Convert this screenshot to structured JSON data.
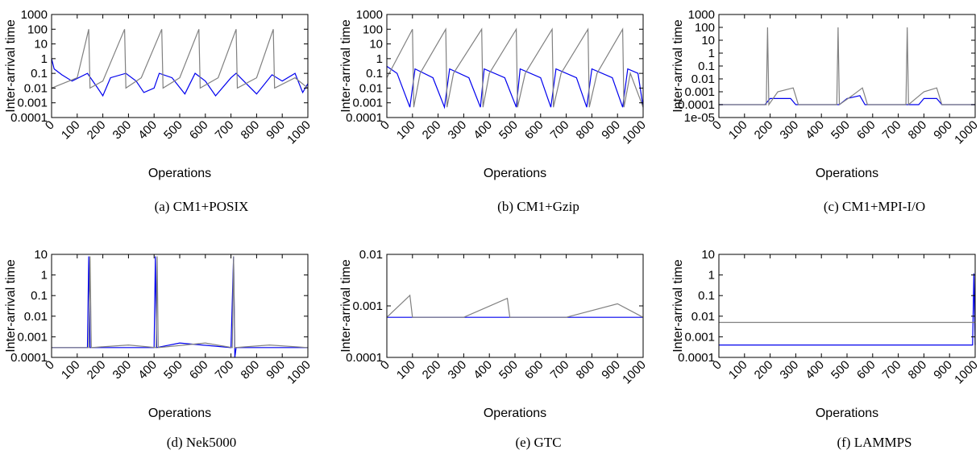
{
  "chart_data": [
    {
      "type": "line",
      "caption": "(a) CM1+POSIX",
      "xlabel": "Operations",
      "ylabel": "Inter-arrival time",
      "xlim": [
        0,
        1000
      ],
      "xticks": [
        0,
        100,
        200,
        300,
        400,
        500,
        600,
        700,
        800,
        900,
        1000
      ],
      "yscale": "log",
      "ylim": [
        0.0001,
        1000
      ],
      "yticks": [
        0.0001,
        0.001,
        0.01,
        0.1,
        1,
        10,
        100,
        1000
      ],
      "ytick_labels": [
        "0.0001",
        "0.001",
        "0.01",
        "0.1",
        "1",
        "10",
        "100",
        "1000"
      ],
      "series": [
        {
          "color": "#0000ee",
          "points": [
            [
              0,
              1
            ],
            [
              10,
              0.2
            ],
            [
              40,
              0.08
            ],
            [
              80,
              0.03
            ],
            [
              140,
              0.1
            ],
            [
              180,
              0.01
            ],
            [
              200,
              0.003
            ],
            [
              230,
              0.05
            ],
            [
              290,
              0.1
            ],
            [
              330,
              0.03
            ],
            [
              360,
              0.005
            ],
            [
              400,
              0.01
            ],
            [
              420,
              0.1
            ],
            [
              470,
              0.05
            ],
            [
              520,
              0.004
            ],
            [
              560,
              0.1
            ],
            [
              600,
              0.03
            ],
            [
              640,
              0.003
            ],
            [
              700,
              0.05
            ],
            [
              720,
              0.1
            ],
            [
              760,
              0.02
            ],
            [
              800,
              0.004
            ],
            [
              860,
              0.08
            ],
            [
              900,
              0.03
            ],
            [
              950,
              0.1
            ],
            [
              980,
              0.005
            ],
            [
              1000,
              0.02
            ]
          ]
        },
        {
          "color": "#808080",
          "points": [
            [
              0,
              0.01
            ],
            [
              100,
              0.05
            ],
            [
              145,
              100
            ],
            [
              150,
              0.01
            ],
            [
              200,
              0.03
            ],
            [
              285,
              100
            ],
            [
              290,
              0.01
            ],
            [
              350,
              0.05
            ],
            [
              430,
              100
            ],
            [
              435,
              0.01
            ],
            [
              500,
              0.05
            ],
            [
              575,
              100
            ],
            [
              580,
              0.01
            ],
            [
              650,
              0.05
            ],
            [
              720,
              100
            ],
            [
              725,
              0.01
            ],
            [
              800,
              0.05
            ],
            [
              865,
              100
            ],
            [
              870,
              0.01
            ],
            [
              950,
              0.05
            ],
            [
              1000,
              0.01
            ]
          ]
        }
      ]
    },
    {
      "type": "line",
      "caption": "(b) CM1+Gzip",
      "xlabel": "Operations",
      "ylabel": "Inter-arrival time",
      "xlim": [
        0,
        1000
      ],
      "xticks": [
        0,
        100,
        200,
        300,
        400,
        500,
        600,
        700,
        800,
        900,
        1000
      ],
      "yscale": "log",
      "ylim": [
        0.0001,
        1000
      ],
      "yticks": [
        0.0001,
        0.001,
        0.01,
        0.1,
        1,
        10,
        100,
        1000
      ],
      "ytick_labels": [
        "0.0001",
        "0.001",
        "0.01",
        "0.1",
        "1",
        "10",
        "100",
        "1000"
      ],
      "series": [
        {
          "color": "#0000ee",
          "points": [
            [
              0,
              0.3
            ],
            [
              40,
              0.1
            ],
            [
              90,
              0.0005
            ],
            [
              110,
              0.2
            ],
            [
              180,
              0.05
            ],
            [
              225,
              0.0005
            ],
            [
              245,
              0.2
            ],
            [
              320,
              0.05
            ],
            [
              365,
              0.0005
            ],
            [
              380,
              0.2
            ],
            [
              460,
              0.05
            ],
            [
              505,
              0.0005
            ],
            [
              520,
              0.2
            ],
            [
              600,
              0.05
            ],
            [
              640,
              0.0005
            ],
            [
              660,
              0.2
            ],
            [
              740,
              0.05
            ],
            [
              780,
              0.0005
            ],
            [
              800,
              0.2
            ],
            [
              880,
              0.05
            ],
            [
              920,
              0.0005
            ],
            [
              940,
              0.2
            ],
            [
              980,
              0.1
            ],
            [
              1000,
              0.0005
            ]
          ]
        },
        {
          "color": "#808080",
          "points": [
            [
              0,
              0.05
            ],
            [
              100,
              100
            ],
            [
              105,
              0.0005
            ],
            [
              130,
              0.1
            ],
            [
              230,
              100
            ],
            [
              235,
              0.0005
            ],
            [
              260,
              0.1
            ],
            [
              370,
              100
            ],
            [
              375,
              0.0005
            ],
            [
              400,
              0.1
            ],
            [
              505,
              100
            ],
            [
              510,
              0.0005
            ],
            [
              540,
              0.1
            ],
            [
              645,
              100
            ],
            [
              650,
              0.0005
            ],
            [
              680,
              0.1
            ],
            [
              785,
              100
            ],
            [
              790,
              0.0005
            ],
            [
              820,
              0.1
            ],
            [
              920,
              100
            ],
            [
              925,
              0.0005
            ],
            [
              950,
              0.1
            ],
            [
              1000,
              0.0005
            ]
          ]
        }
      ]
    },
    {
      "type": "line",
      "caption": "(c) CM1+MPI-I/O",
      "xlabel": "Operations",
      "ylabel": "Inter-arrival time",
      "xlim": [
        0,
        1000
      ],
      "xticks": [
        0,
        100,
        200,
        300,
        400,
        500,
        600,
        700,
        800,
        900,
        1000
      ],
      "yscale": "log",
      "ylim": [
        1e-05,
        1000
      ],
      "yticks": [
        1e-05,
        0.0001,
        0.001,
        0.01,
        0.1,
        1,
        10,
        100,
        1000
      ],
      "ytick_labels": [
        "1e-05",
        "0.0001",
        "0.001",
        "0.01",
        "0.1",
        "1",
        "10",
        "100",
        "1000"
      ],
      "series": [
        {
          "color": "#0000ee",
          "points": [
            [
              0,
              0.0001
            ],
            [
              180,
              0.0001
            ],
            [
              200,
              0.0003
            ],
            [
              280,
              0.0003
            ],
            [
              300,
              0.0001
            ],
            [
              470,
              0.0001
            ],
            [
              500,
              0.0003
            ],
            [
              550,
              0.0005
            ],
            [
              570,
              0.0001
            ],
            [
              780,
              0.0001
            ],
            [
              800,
              0.0003
            ],
            [
              850,
              0.0003
            ],
            [
              870,
              0.0001
            ],
            [
              1000,
              0.0001
            ]
          ]
        },
        {
          "color": "#808080",
          "points": [
            [
              0,
              0.0001
            ],
            [
              185,
              0.0001
            ],
            [
              190,
              100
            ],
            [
              195,
              0.0001
            ],
            [
              230,
              0.001
            ],
            [
              290,
              0.002
            ],
            [
              310,
              0.0001
            ],
            [
              460,
              0.0001
            ],
            [
              465,
              100
            ],
            [
              470,
              0.0001
            ],
            [
              520,
              0.0005
            ],
            [
              560,
              0.002
            ],
            [
              580,
              0.0001
            ],
            [
              730,
              0.0001
            ],
            [
              735,
              100
            ],
            [
              740,
              0.0001
            ],
            [
              800,
              0.001
            ],
            [
              850,
              0.002
            ],
            [
              870,
              0.0001
            ],
            [
              1000,
              0.0001
            ]
          ]
        }
      ]
    },
    {
      "type": "line",
      "caption": "(d) Nek5000",
      "xlabel": "Operations",
      "ylabel": "Inter-arrival time",
      "xlim": [
        0,
        1000
      ],
      "xticks": [
        0,
        100,
        200,
        300,
        400,
        500,
        600,
        700,
        800,
        900,
        1000
      ],
      "yscale": "log",
      "ylim": [
        0.0001,
        10
      ],
      "yticks": [
        0.0001,
        0.001,
        0.01,
        0.1,
        1,
        10
      ],
      "ytick_labels": [
        "0.0001",
        "0.001",
        "0.01",
        "0.1",
        "1",
        "10"
      ],
      "series": [
        {
          "color": "#0000ee",
          "points": [
            [
              0,
              0.0003
            ],
            [
              140,
              0.0003
            ],
            [
              145,
              8
            ],
            [
              150,
              0.0003
            ],
            [
              400,
              0.0003
            ],
            [
              405,
              8
            ],
            [
              410,
              0.0003
            ],
            [
              500,
              0.0005
            ],
            [
              700,
              0.0003
            ],
            [
              710,
              8
            ],
            [
              715,
              0.0001
            ],
            [
              720,
              0.0003
            ],
            [
              1000,
              0.0003
            ]
          ]
        },
        {
          "color": "#808080",
          "points": [
            [
              0,
              0.0003
            ],
            [
              145,
              0.0003
            ],
            [
              150,
              8
            ],
            [
              155,
              0.0003
            ],
            [
              300,
              0.0004
            ],
            [
              408,
              0.0003
            ],
            [
              412,
              8
            ],
            [
              416,
              0.0003
            ],
            [
              600,
              0.0005
            ],
            [
              705,
              0.0003
            ],
            [
              710,
              8
            ],
            [
              715,
              0.0003
            ],
            [
              850,
              0.0004
            ],
            [
              1000,
              0.0003
            ]
          ]
        }
      ]
    },
    {
      "type": "line",
      "caption": "(e) GTC",
      "xlabel": "Operations",
      "ylabel": "Inter-arrival time",
      "xlim": [
        0,
        1000
      ],
      "xticks": [
        0,
        100,
        200,
        300,
        400,
        500,
        600,
        700,
        800,
        900,
        1000
      ],
      "yscale": "log",
      "ylim": [
        0.0001,
        0.01
      ],
      "yticks": [
        0.0001,
        0.001,
        0.01
      ],
      "ytick_labels": [
        "0.0001",
        "0.001",
        "0.01"
      ],
      "series": [
        {
          "color": "#0000ee",
          "points": [
            [
              0,
              0.0006
            ],
            [
              200,
              0.0006
            ],
            [
              400,
              0.0006
            ],
            [
              600,
              0.0006
            ],
            [
              800,
              0.0006
            ],
            [
              1000,
              0.0006
            ]
          ]
        },
        {
          "color": "#808080",
          "points": [
            [
              0,
              0.0006
            ],
            [
              90,
              0.0016
            ],
            [
              100,
              0.0006
            ],
            [
              300,
              0.0006
            ],
            [
              470,
              0.0014
            ],
            [
              480,
              0.0006
            ],
            [
              700,
              0.0006
            ],
            [
              900,
              0.0011
            ],
            [
              1000,
              0.0006
            ]
          ]
        }
      ]
    },
    {
      "type": "line",
      "caption": "(f) LAMMPS",
      "xlabel": "Operations",
      "ylabel": "Inter-arrival time",
      "xlim": [
        0,
        1000
      ],
      "xticks": [
        0,
        100,
        200,
        300,
        400,
        500,
        600,
        700,
        800,
        900,
        1000
      ],
      "yscale": "log",
      "ylim": [
        0.0001,
        10
      ],
      "yticks": [
        0.0001,
        0.001,
        0.01,
        0.1,
        1,
        10
      ],
      "ytick_labels": [
        "0.0001",
        "0.001",
        "0.01",
        "0.1",
        "1",
        "10"
      ],
      "series": [
        {
          "color": "#0000ee",
          "points": [
            [
              0,
              0.0004
            ],
            [
              990,
              0.0004
            ],
            [
              995,
              1.2
            ],
            [
              1000,
              0.0004
            ]
          ]
        },
        {
          "color": "#808080",
          "points": [
            [
              0,
              0.005
            ],
            [
              500,
              0.005
            ],
            [
              1000,
              0.005
            ]
          ]
        }
      ]
    }
  ]
}
